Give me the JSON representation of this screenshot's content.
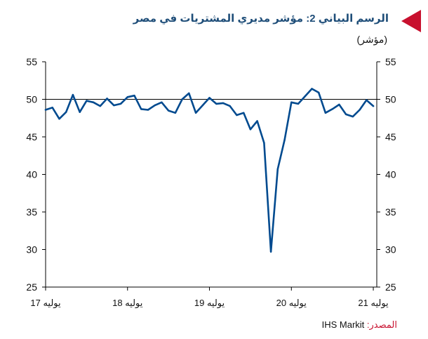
{
  "header": {
    "title": "الرسم البياني 2: مؤشر مديري المشتريات في مصر",
    "subtitle": "(مؤشر)"
  },
  "footer": {
    "source_label": "المصدر:",
    "source_value": "IHS Markit"
  },
  "colors": {
    "accent": "#c8102e",
    "title": "#1f4e79",
    "series": "#004a8f"
  },
  "chart_data": {
    "type": "line",
    "title": "الرسم البياني 2: مؤشر مديري المشتريات في مصر",
    "ylabel": "(مؤشر)",
    "ylim": [
      25,
      55
    ],
    "yticks": [
      25,
      30,
      35,
      40,
      45,
      50,
      55
    ],
    "grid": false,
    "reference_line": 50,
    "x_tick_labels": [
      "يوليه 17",
      "يوليه 18",
      "يوليه 19",
      "يوليه 20",
      "يوليه 21"
    ],
    "x": [
      "2017-07",
      "2017-08",
      "2017-09",
      "2017-10",
      "2017-11",
      "2017-12",
      "2018-01",
      "2018-02",
      "2018-03",
      "2018-04",
      "2018-05",
      "2018-06",
      "2018-07",
      "2018-08",
      "2018-09",
      "2018-10",
      "2018-11",
      "2018-12",
      "2019-01",
      "2019-02",
      "2019-03",
      "2019-04",
      "2019-05",
      "2019-06",
      "2019-07",
      "2019-08",
      "2019-09",
      "2019-10",
      "2019-11",
      "2019-12",
      "2020-01",
      "2020-02",
      "2020-03",
      "2020-04",
      "2020-05",
      "2020-06",
      "2020-07",
      "2020-08",
      "2020-09",
      "2020-10",
      "2020-11",
      "2020-12",
      "2021-01",
      "2021-02",
      "2021-03",
      "2021-04",
      "2021-05",
      "2021-06",
      "2021-07"
    ],
    "series": [
      {
        "values": [
          48.6,
          48.9,
          47.4,
          48.3,
          50.6,
          48.3,
          49.8,
          49.6,
          49.1,
          50.1,
          49.2,
          49.4,
          50.3,
          50.5,
          48.7,
          48.6,
          49.2,
          49.6,
          48.5,
          48.2,
          50.0,
          50.8,
          48.2,
          49.2,
          50.2,
          49.4,
          49.5,
          49.1,
          47.9,
          48.2,
          46.0,
          47.1,
          44.2,
          29.7,
          40.7,
          44.6,
          49.6,
          49.4,
          50.4,
          51.4,
          50.9,
          48.2,
          48.7,
          49.3,
          48.0,
          47.7,
          48.6,
          49.9,
          49.1
        ]
      }
    ]
  }
}
